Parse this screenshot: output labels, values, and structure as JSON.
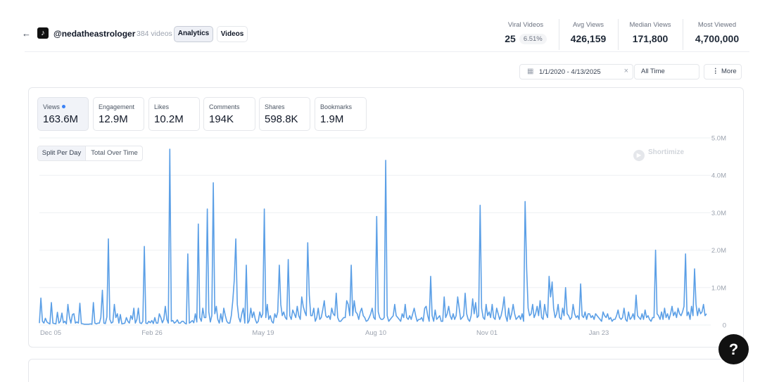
{
  "header": {
    "back_glyph": "←",
    "platform_icon": "tiktok-icon",
    "handle": "@nedatheastrologer",
    "video_count": "384 videos",
    "tabs": [
      {
        "label": "Analytics",
        "active": true
      },
      {
        "label": "Videos",
        "active": false
      }
    ]
  },
  "stats": {
    "viral": {
      "label": "Viral Videos",
      "value": "25",
      "percent": "6.51%"
    },
    "avg": {
      "label": "Avg Views",
      "value": "426,159"
    },
    "median": {
      "label": "Median Views",
      "value": "171,800"
    },
    "most": {
      "label": "Most Viewed",
      "value": "4,700,000"
    }
  },
  "filters": {
    "calendar_icon": "calendar-icon",
    "date_range": "1/1/2020 - 4/13/2025",
    "clear_glyph": "×",
    "period": "All Time",
    "more_glyph": "⋮",
    "more_label": "More"
  },
  "metrics": [
    {
      "label": "Views",
      "value": "163.6M",
      "active": true
    },
    {
      "label": "Engagement",
      "value": "12.9M"
    },
    {
      "label": "Likes",
      "value": "10.2M"
    },
    {
      "label": "Comments",
      "value": "194K"
    },
    {
      "label": "Shares",
      "value": "598.8K"
    },
    {
      "label": "Bookmarks",
      "value": "1.9M"
    }
  ],
  "toggle": {
    "split": "Split Per Day",
    "total": "Total Over Time",
    "selected": "split"
  },
  "watermark": "Shortimize",
  "help_glyph": "?",
  "colors": {
    "line": "#5b9fe6",
    "grid": "#eef0f3",
    "dot": "#3b82f6"
  },
  "chart_data": {
    "type": "line",
    "series": [
      {
        "values": [
          0.05,
          0.72,
          0.1,
          0.05,
          0.18,
          0.08,
          0.05,
          0.03,
          0.6,
          0.05,
          0.04,
          0.03,
          0.34,
          0.05,
          0.1,
          0.32,
          0.06,
          0.1,
          0.03,
          0.55,
          0.22,
          0.05,
          0.28,
          0.3,
          0.05,
          0.08,
          0.05,
          0.58,
          0.04,
          0.03,
          0.02,
          0.02,
          0.02,
          0.02,
          0.03,
          0.02,
          0.6,
          0.05,
          0.03,
          0.05,
          0.05,
          0.2,
          0.93,
          0.05,
          0.04,
          0.22,
          2.3,
          0.15,
          0.05,
          0.08,
          0.55,
          0.2,
          0.3,
          0.05,
          0.28,
          0.03,
          0.04,
          0.05,
          0.2,
          0.1,
          0.05,
          0.25,
          0.15,
          0.45,
          0.05,
          0.15,
          0.45,
          0.06,
          0.04,
          0.1,
          2.1,
          0.05,
          0.04,
          0.1,
          0.06,
          0.12,
          0.04,
          0.2,
          0.05,
          0.05,
          0.3,
          0.2,
          0.06,
          0.15,
          0.5,
          0.15,
          0.05,
          4.7,
          0.1,
          0.12,
          0.05,
          0.08,
          0.14,
          0.05,
          0.05,
          0.1,
          0.1,
          0.05,
          0.03,
          1.9,
          0.05,
          0.08,
          0.12,
          0.06,
          0.3,
          0.08,
          2.7,
          0.2,
          0.1,
          0.45,
          0.2,
          0.2,
          3.1,
          0.35,
          0.08,
          0.25,
          3.8,
          0.3,
          0.5,
          0.15,
          0.05,
          0.3,
          0.08,
          0.45,
          0.25,
          0.1,
          0.05,
          0.05,
          0.25,
          0.65,
          1.2,
          2.3,
          0.55,
          0.2,
          0.08,
          0.3,
          0.45,
          0.05,
          1.6,
          0.05,
          0.12,
          0.45,
          0.2,
          0.35,
          0.15,
          0.05,
          0.1,
          0.35,
          0.2,
          0.3,
          3.1,
          0.2,
          0.55,
          0.15,
          0.25,
          0.1,
          0.05,
          0.3,
          0.2,
          0.35,
          1.6,
          0.55,
          0.25,
          0.35,
          0.2,
          0.15,
          1.75,
          0.25,
          0.15,
          0.4,
          0.3,
          0.2,
          0.5,
          0.25,
          0.15,
          0.75,
          0.5,
          0.35,
          0.25,
          2.2,
          0.8,
          0.25,
          0.25,
          0.45,
          0.1,
          0.2,
          0.45,
          0.15,
          0.2,
          0.4,
          0.65,
          0.25,
          0.2,
          0.25,
          0.15,
          0.45,
          0.3,
          0.25,
          0.85,
          0.2,
          0.1,
          0.1,
          0.15,
          0.2,
          0.2,
          0.65,
          0.55,
          0.25,
          1.6,
          0.25,
          0.65,
          0.35,
          0.3,
          0.15,
          0.35,
          0.45,
          0.25,
          0.2,
          0.1,
          0.12,
          0.2,
          0.3,
          0.45,
          0.2,
          0.15,
          2.9,
          0.35,
          0.2,
          0.15,
          0.15,
          0.2,
          4.4,
          0.25,
          0.1,
          0.15,
          0.2,
          0.25,
          0.55,
          0.25,
          0.2,
          0.15,
          0.1,
          0.3,
          0.2,
          0.55,
          0.2,
          0.15,
          0.25,
          0.15,
          0.3,
          0.45,
          0.25,
          0.1,
          0.15,
          0.15,
          0.2,
          0.1,
          0.45,
          0.5,
          0.25,
          0.1,
          1.3,
          0.25,
          0.1,
          0.4,
          0.15,
          0.2,
          0.25,
          0.1,
          0.1,
          0.75,
          0.2,
          0.3,
          0.5,
          0.25,
          0.15,
          0.3,
          0.15,
          0.25,
          0.75,
          0.45,
          0.15,
          0.2,
          0.25,
          0.85,
          0.3,
          0.15,
          0.1,
          0.25,
          0.7,
          0.3,
          0.6,
          0.2,
          0.25,
          3.2,
          0.45,
          0.2,
          0.15,
          0.55,
          0.25,
          0.35,
          0.2,
          0.55,
          0.2,
          0.15,
          0.45,
          0.3,
          0.15,
          0.25,
          0.45,
          0.75,
          0.25,
          0.1,
          0.45,
          0.15,
          0.3,
          0.55,
          0.3,
          0.15,
          0.2,
          0.25,
          0.15,
          0.3,
          0.1,
          3.3,
          1.5,
          0.45,
          0.25,
          0.3,
          0.55,
          0.2,
          0.3,
          0.5,
          0.25,
          0.65,
          0.2,
          0.15,
          0.55,
          0.3,
          0.2,
          1.3,
          0.75,
          1.15,
          0.45,
          0.2,
          0.3,
          0.55,
          0.2,
          0.15,
          0.45,
          0.25,
          1.0,
          0.3,
          0.25,
          0.15,
          0.2,
          0.55,
          0.3,
          0.2,
          0.25,
          0.15,
          1.1,
          0.25,
          0.2,
          0.35,
          0.15,
          0.3,
          0.3,
          0.2,
          0.25,
          0.15,
          0.3,
          0.25,
          0.2,
          0.15,
          0.1,
          0.35,
          0.25,
          0.2,
          0.3,
          0.15,
          0.2,
          0.1,
          0.15,
          0.15,
          0.25,
          0.4,
          0.2,
          0.15,
          0.2,
          0.45,
          0.15,
          0.1,
          0.35,
          0.15,
          0.2,
          0.3,
          0.15,
          0.8,
          0.25,
          0.2,
          0.15,
          0.3,
          0.15,
          0.4,
          0.2,
          0.25,
          0.15,
          0.1,
          0.2,
          0.2,
          2.0,
          0.3,
          0.25,
          0.15,
          0.35,
          0.15,
          0.45,
          0.2,
          0.3,
          0.15,
          0.3,
          0.5,
          0.25,
          0.35,
          0.2,
          0.45,
          0.3,
          0.25,
          0.35,
          0.5,
          1.9,
          0.25,
          0.35,
          0.15,
          0.5,
          0.25,
          1.5,
          0.55,
          0.25,
          0.45,
          0.3,
          0.35,
          0.55,
          0.25,
          0.3
        ]
      }
    ],
    "x_ticks": [
      "Dec 05",
      "Feb 26",
      "May 19",
      "Aug 10",
      "Nov 01",
      "Jan 23"
    ],
    "y_ticks": [
      "0",
      "1.0M",
      "2.0M",
      "3.0M",
      "4.0M",
      "5.0M"
    ],
    "y_unit": "M",
    "ylim": [
      0,
      5
    ],
    "grid": true
  }
}
